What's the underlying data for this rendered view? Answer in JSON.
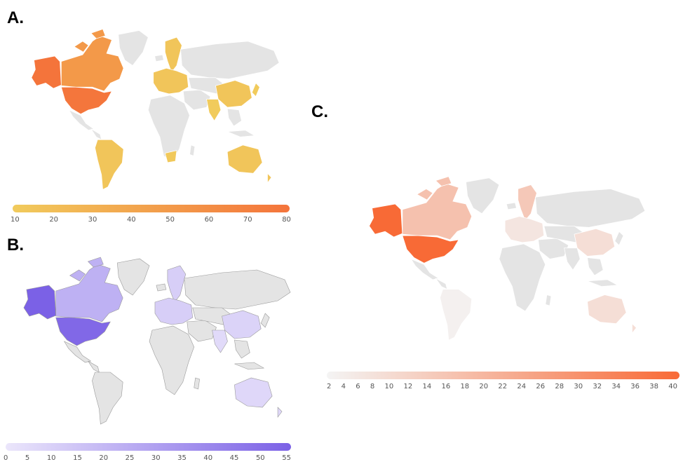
{
  "panels": {
    "a": {
      "label": "A.",
      "colors": {
        "low": "#f1cb5c",
        "high": "#f4743b",
        "land": "#e4e4e4"
      },
      "scale_ticks": [
        "10",
        "20",
        "30",
        "40",
        "50",
        "60",
        "70",
        "80"
      ],
      "regions": {
        "alaska": 80,
        "usa": 78,
        "canada": 50,
        "europe": 15,
        "china": 15,
        "india": 10,
        "brazil": 15,
        "australia": 15,
        "south_africa": 12,
        "japan": 10
      }
    },
    "b": {
      "label": "B.",
      "colors": {
        "low": "#ebe6fb",
        "high": "#7b61e6",
        "land": "#e4e4e4"
      },
      "scale_ticks": [
        "0",
        "5",
        "10",
        "15",
        "20",
        "25",
        "30",
        "35",
        "40",
        "45",
        "50",
        "55"
      ],
      "regions": {
        "alaska": 55,
        "usa": 52,
        "canada": 22,
        "europe": 10,
        "china": 8,
        "india": 5,
        "australia": 6
      }
    },
    "c": {
      "label": "C.",
      "colors": {
        "low": "#f4f4f4",
        "high": "#f86a36",
        "land": "#e4e4e4"
      },
      "scale_ticks": [
        "2",
        "4",
        "6",
        "8",
        "10",
        "12",
        "14",
        "16",
        "18",
        "20",
        "22",
        "24",
        "26",
        "28",
        "30",
        "32",
        "34",
        "36",
        "38",
        "40"
      ],
      "regions": {
        "alaska": 40,
        "usa": 40,
        "canada": 16,
        "scandinavia": 14,
        "europe": 6,
        "china": 8,
        "australia": 8,
        "south_america": 3
      }
    }
  }
}
